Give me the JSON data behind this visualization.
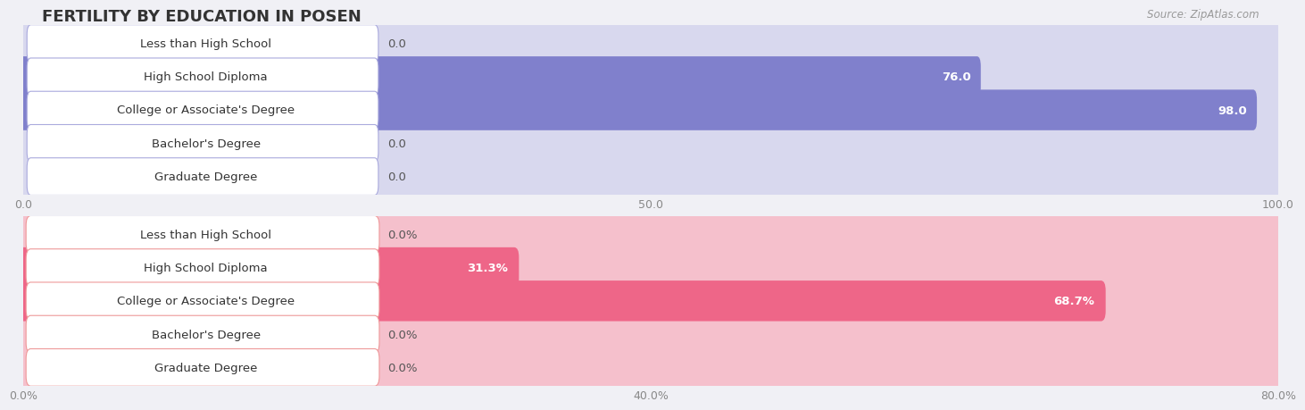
{
  "title": "FERTILITY BY EDUCATION IN POSEN",
  "source": "Source: ZipAtlas.com",
  "top_chart": {
    "categories": [
      "Less than High School",
      "High School Diploma",
      "College or Associate's Degree",
      "Bachelor's Degree",
      "Graduate Degree"
    ],
    "values": [
      0.0,
      76.0,
      98.0,
      0.0,
      0.0
    ],
    "bar_color": "#8080cc",
    "bar_bg_color": "#d8d8ee",
    "label_border_color": "#aaaadd",
    "xlim": [
      0,
      100
    ],
    "xticks": [
      0.0,
      50.0,
      100.0
    ],
    "xtick_labels": [
      "0.0",
      "50.0",
      "100.0"
    ],
    "value_labels": [
      "0.0",
      "76.0",
      "98.0",
      "0.0",
      "0.0"
    ]
  },
  "bottom_chart": {
    "categories": [
      "Less than High School",
      "High School Diploma",
      "College or Associate's Degree",
      "Bachelor's Degree",
      "Graduate Degree"
    ],
    "values": [
      0.0,
      31.3,
      68.7,
      0.0,
      0.0
    ],
    "bar_color": "#ee6688",
    "bar_bg_color": "#f5c0cc",
    "label_border_color": "#ee9999",
    "xlim": [
      0,
      80
    ],
    "xticks": [
      0.0,
      40.0,
      80.0
    ],
    "xtick_labels": [
      "0.0%",
      "40.0%",
      "80.0%"
    ],
    "value_labels": [
      "0.0%",
      "31.3%",
      "68.7%",
      "0.0%",
      "0.0%"
    ]
  },
  "bg_color": "#f0f0f5",
  "label_bg_color": "#ffffff",
  "label_font_size": 9.5,
  "value_font_size": 9.5,
  "title_font_size": 13,
  "title_color": "#333333",
  "source_color": "#999999",
  "tick_color": "#888888",
  "grid_color": "#cccccc",
  "row_bg_even": "#f8f8fc",
  "row_bg_odd": "#efefef"
}
